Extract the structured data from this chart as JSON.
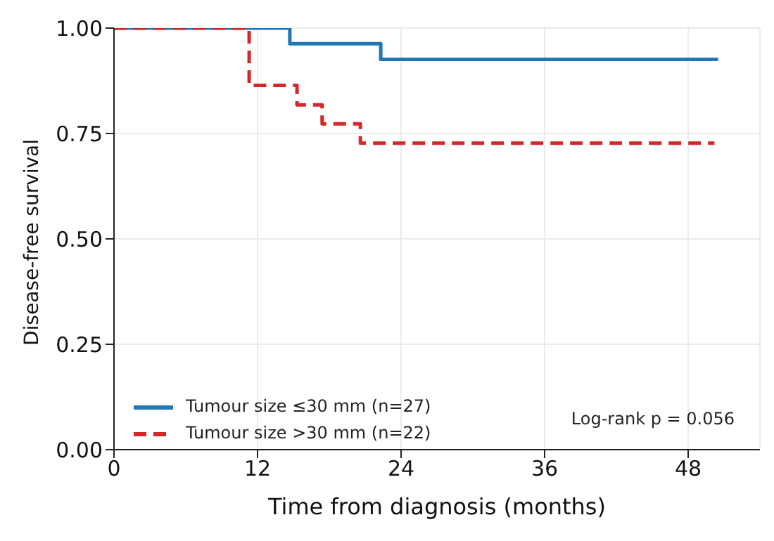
{
  "chart_data": {
    "type": "step",
    "xlabel": "Time from diagnosis (months)",
    "ylabel": "Disease-free survival",
    "xlim": [
      0,
      54
    ],
    "xticks": [
      0,
      12,
      24,
      36,
      48
    ],
    "ylim": [
      0,
      1
    ],
    "yticks": [
      {
        "value": 0,
        "label": "0.00"
      },
      {
        "value": 0.25,
        "label": "0.25"
      },
      {
        "value": 0.5,
        "label": "0.50"
      },
      {
        "value": 0.75,
        "label": "0.75"
      },
      {
        "value": 1,
        "label": "1.00"
      }
    ],
    "grid": true,
    "legend": "bottom left",
    "series": [
      {
        "name": "Tumour size ≤30 mm (n=27)",
        "color": "#1f77b4",
        "line_style": "solid",
        "x": [
          0,
          14.7,
          22.3,
          50.5
        ],
        "values": [
          1,
          0.963,
          0.926,
          0.926
        ]
      },
      {
        "name": "Tumour size >30 mm (n=22)",
        "color": "#d62728",
        "line_style": "dashed",
        "x": [
          0,
          11.3,
          15.3,
          17.4,
          20.6,
          50.2
        ],
        "values": [
          1,
          0.864,
          0.818,
          0.773,
          0.727,
          0.727
        ]
      }
    ],
    "annotations": [
      "Log-rank p = 0.056"
    ]
  }
}
